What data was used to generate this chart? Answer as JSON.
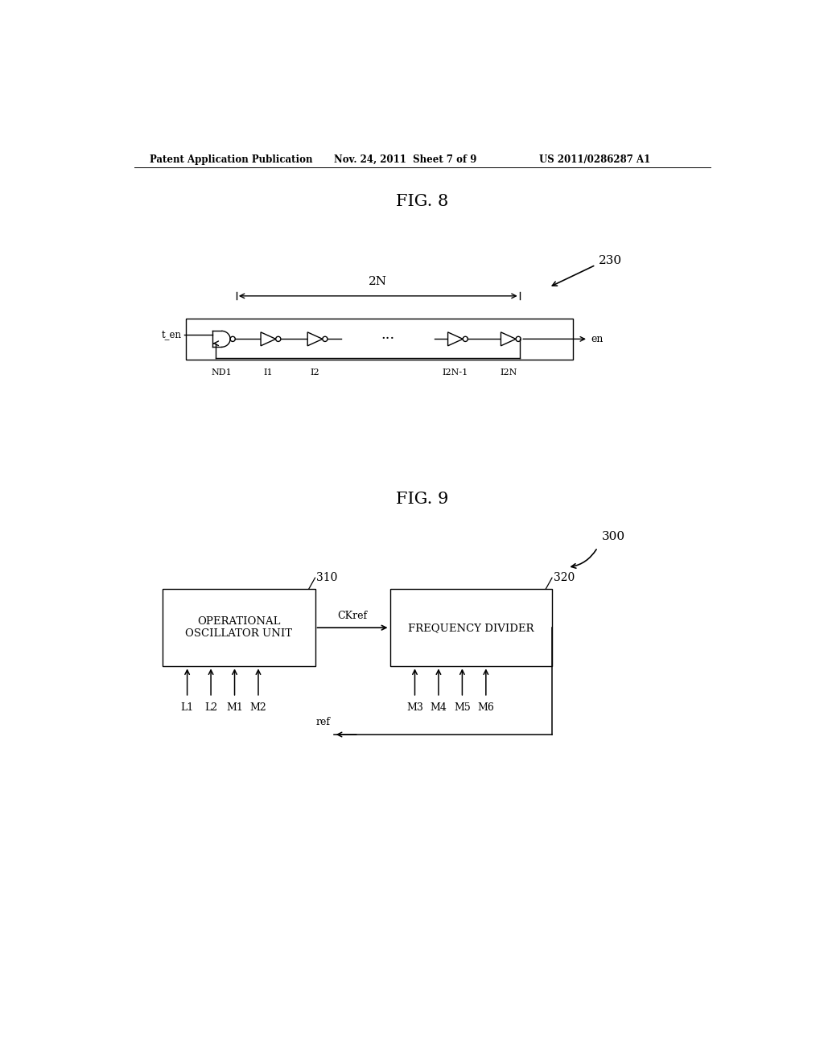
{
  "bg_color": "#ffffff",
  "header_left": "Patent Application Publication",
  "header_mid": "Nov. 24, 2011  Sheet 7 of 9",
  "header_right": "US 2011/0286287 A1",
  "fig8_title": "FIG. 8",
  "fig9_title": "FIG. 9",
  "fig8_label": "230",
  "fig9_label": "300",
  "fig8": {
    "t_en_label": "t_en",
    "en_label": "en",
    "2N_label": "2N",
    "components": [
      "ND1",
      "I1",
      "I2",
      "...",
      "I2N-1",
      "I2N"
    ]
  },
  "fig9": {
    "box1_label1": "OPERATIONAL",
    "box1_label2": "OSCILLATOR UNIT",
    "box1_num": "310",
    "box2_label": "FREQUENCY DIVIDER",
    "box2_num": "320",
    "ckref_label": "CKref",
    "ref_label": "ref",
    "inputs1": [
      "L1",
      "L2",
      "M1",
      "M2"
    ],
    "inputs2": [
      "M3",
      "M4",
      "M5",
      "M6"
    ]
  }
}
